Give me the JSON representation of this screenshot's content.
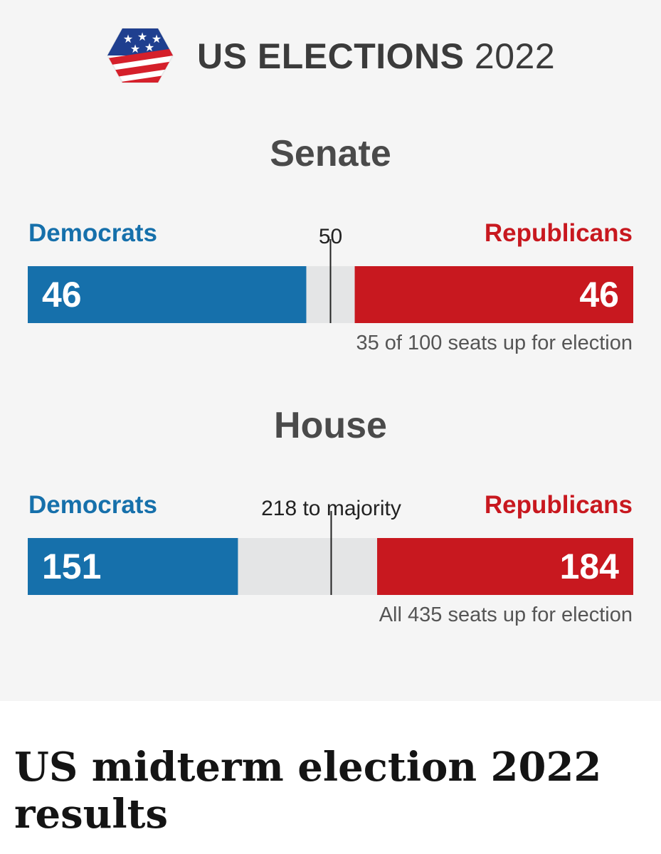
{
  "header": {
    "title_main": "US ELECTIONS",
    "title_year": "2022",
    "logo_icon": "us-flag-hexagon-icon"
  },
  "colors": {
    "democrat": "#1670ab",
    "republican": "#c8181f",
    "undecided": "#e4e5e6",
    "marker": "#222222"
  },
  "chart_data": [
    {
      "type": "bar",
      "title": "Senate",
      "orientation": "horizontal-stacked",
      "total": 100,
      "marker": {
        "value": 50,
        "label": "50"
      },
      "series": [
        {
          "name": "Democrats",
          "value": 46,
          "label": "46"
        },
        {
          "name": "Republicans",
          "value": 46,
          "label": "46"
        }
      ],
      "undecided": 8,
      "note": "35 of 100 seats up for election"
    },
    {
      "type": "bar",
      "title": "House",
      "orientation": "horizontal-stacked",
      "total": 435,
      "marker": {
        "value": 218,
        "label": "218 to majority"
      },
      "series": [
        {
          "name": "Democrats",
          "value": 151,
          "label": "151"
        },
        {
          "name": "Republicans",
          "value": 184,
          "label": "184"
        }
      ],
      "undecided": 100,
      "note": "All 435 seats up for election"
    }
  ],
  "headline": "US midterm election 2022 results"
}
